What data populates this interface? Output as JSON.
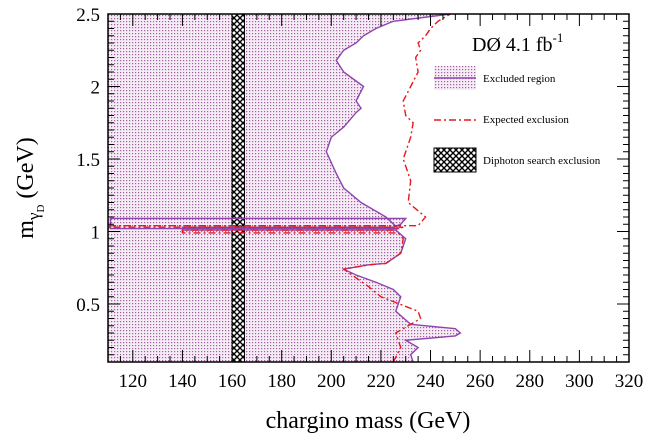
{
  "chart_data": {
    "type": "line",
    "experiment_label": "DØ 4.1 fb",
    "experiment_sup": "-1",
    "xlabel": "chargino mass (GeV)",
    "ylabel_main": "m",
    "ylabel_sub": "γ",
    "ylabel_subsub": "D",
    "ylabel_unit": " (GeV)",
    "xlim": [
      110,
      320
    ],
    "ylim": [
      0.1,
      2.5
    ],
    "xticks": [
      120,
      140,
      160,
      180,
      200,
      220,
      240,
      260,
      280,
      300,
      320
    ],
    "yticks": [
      0.5,
      1,
      1.5,
      2,
      2.5
    ],
    "ytick_labels": [
      "0.5",
      "1",
      "1.5",
      "2",
      "2.5"
    ],
    "legend": [
      {
        "label": "Excluded region",
        "style": "fill-line"
      },
      {
        "label": "Expected exclusion",
        "style": "dashdot"
      },
      {
        "label": "Diphoton search exclusion",
        "style": "hatch"
      }
    ],
    "colors": {
      "observed": "#8e44ad",
      "expected": "#e41a1c",
      "excluded_fill": "#b070b0",
      "diphoton": "#000000"
    },
    "diphoton_band": {
      "x_min": 160,
      "x_max": 165
    },
    "series": [
      {
        "name": "Excluded region",
        "x": [
          233,
          232,
          235,
          230,
          250,
          252,
          250,
          232,
          226,
          228,
          225,
          218,
          210,
          205,
          215,
          222,
          228,
          230,
          226,
          140,
          140,
          225,
          228,
          230,
          111,
          111,
          227,
          222,
          212,
          205,
          202,
          198,
          200,
          205,
          208,
          210,
          212,
          210,
          213,
          205,
          202,
          205,
          210,
          213,
          218,
          225,
          248
        ],
        "y": [
          0.1,
          0.15,
          0.2,
          0.25,
          0.28,
          0.3,
          0.33,
          0.36,
          0.45,
          0.55,
          0.6,
          0.65,
          0.7,
          0.74,
          0.77,
          0.78,
          0.85,
          0.95,
          1.01,
          1.01,
          1.03,
          1.03,
          1.05,
          1.09,
          1.09,
          1.02,
          1.02,
          1.1,
          1.2,
          1.3,
          1.4,
          1.55,
          1.65,
          1.72,
          1.78,
          1.82,
          1.85,
          1.9,
          2.0,
          2.1,
          2.18,
          2.25,
          2.3,
          2.35,
          2.4,
          2.45,
          2.5
        ]
      },
      {
        "name": "Expected exclusion",
        "x": [
          225,
          228,
          226,
          236,
          235,
          220,
          215,
          210,
          205,
          215,
          222,
          228,
          229,
          227,
          140,
          140,
          225,
          229,
          110,
          110,
          235,
          238,
          231,
          232,
          229,
          232,
          233,
          230,
          229,
          232,
          235,
          234,
          236,
          235,
          238,
          240,
          243,
          246,
          248
        ],
        "y": [
          0.1,
          0.2,
          0.3,
          0.4,
          0.45,
          0.55,
          0.62,
          0.68,
          0.74,
          0.77,
          0.78,
          0.85,
          0.95,
          0.99,
          0.99,
          1.01,
          1.01,
          1.03,
          1.03,
          1.04,
          1.04,
          1.1,
          1.2,
          1.35,
          1.5,
          1.65,
          1.75,
          1.8,
          1.9,
          2.0,
          2.1,
          2.2,
          2.25,
          2.3,
          2.35,
          2.4,
          2.45,
          2.48,
          2.5
        ]
      }
    ]
  }
}
